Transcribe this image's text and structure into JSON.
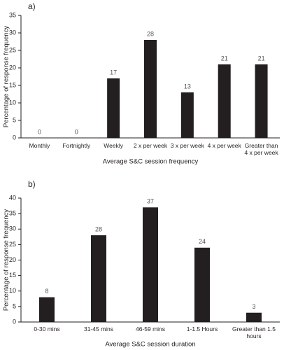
{
  "chart_data": [
    {
      "type": "bar",
      "title": "a)",
      "xlabel": "Average S&C session frequency",
      "ylabel": "Percentage of response frequency",
      "categories": [
        "Monthly",
        "Fortnightly",
        "Weekly",
        "2 x per week",
        "3 x per week",
        "4 x per week",
        "Greater than 4 x per week"
      ],
      "values": [
        0,
        0,
        17,
        28,
        13,
        21,
        21
      ],
      "color": "#231f20",
      "ylim": [
        0,
        35
      ],
      "yticks": [
        0,
        5,
        10,
        15,
        20,
        25,
        30,
        35
      ]
    },
    {
      "type": "bar",
      "title": "b)",
      "xlabel": "Average S&C session duration",
      "ylabel": "Percentage of response frequency",
      "categories": [
        "0-30 mins",
        "31-45 mins",
        "46-59 mins",
        "1-1.5 Hours",
        "Greater than 1.5 hours"
      ],
      "values": [
        8,
        28,
        37,
        24,
        3
      ],
      "color": "#231f20",
      "ylim": [
        0,
        40
      ],
      "yticks": [
        0,
        5,
        10,
        15,
        20,
        25,
        30,
        35,
        40
      ]
    }
  ]
}
